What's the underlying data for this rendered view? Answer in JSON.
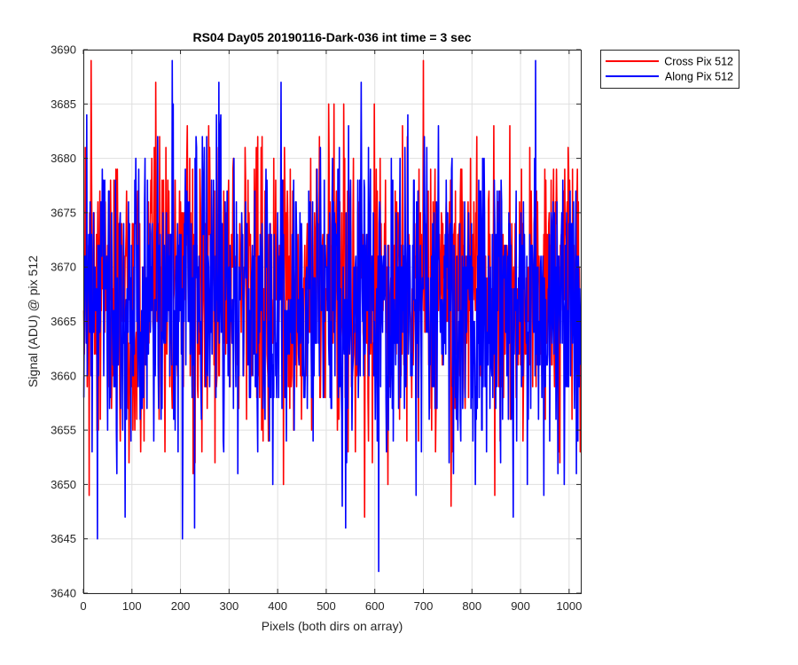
{
  "chart_data": {
    "type": "line",
    "title": "RS04 Day05 20190116-Dark-036 int time = 3 sec",
    "xlabel": "Pixels (both dirs on array)",
    "ylabel": "Signal (ADU) @ pix 512",
    "xlim": [
      0,
      1024
    ],
    "ylim": [
      3640,
      3690
    ],
    "xticks": [
      0,
      100,
      200,
      300,
      400,
      500,
      600,
      700,
      800,
      900,
      1000
    ],
    "yticks": [
      3640,
      3645,
      3650,
      3655,
      3660,
      3665,
      3670,
      3675,
      3680,
      3685,
      3690
    ],
    "grid": true,
    "legend_position": "outside-top-right",
    "x": {
      "start": 1,
      "end": 1024,
      "step": 1
    },
    "series": [
      {
        "name": "Cross Pix 512",
        "color": "#ff0000",
        "mean": 3668,
        "spread": 6.5,
        "min": 3647,
        "max": 3689,
        "extremes": [
          [
            16,
            3689
          ],
          [
            700,
            3689
          ],
          [
            12,
            3649
          ],
          [
            579,
            3647
          ],
          [
            757,
            3648
          ],
          [
            847,
            3649
          ]
        ]
      },
      {
        "name": "Along Pix 512",
        "color": "#0000ff",
        "mean": 3667,
        "spread": 7,
        "min": 3642,
        "max": 3689,
        "extremes": [
          [
            183,
            3689
          ],
          [
            931,
            3689
          ],
          [
            29,
            3645
          ],
          [
            204,
            3645
          ],
          [
            608,
            3642
          ],
          [
            229,
            3646
          ],
          [
            540,
            3646
          ]
        ]
      }
    ]
  }
}
